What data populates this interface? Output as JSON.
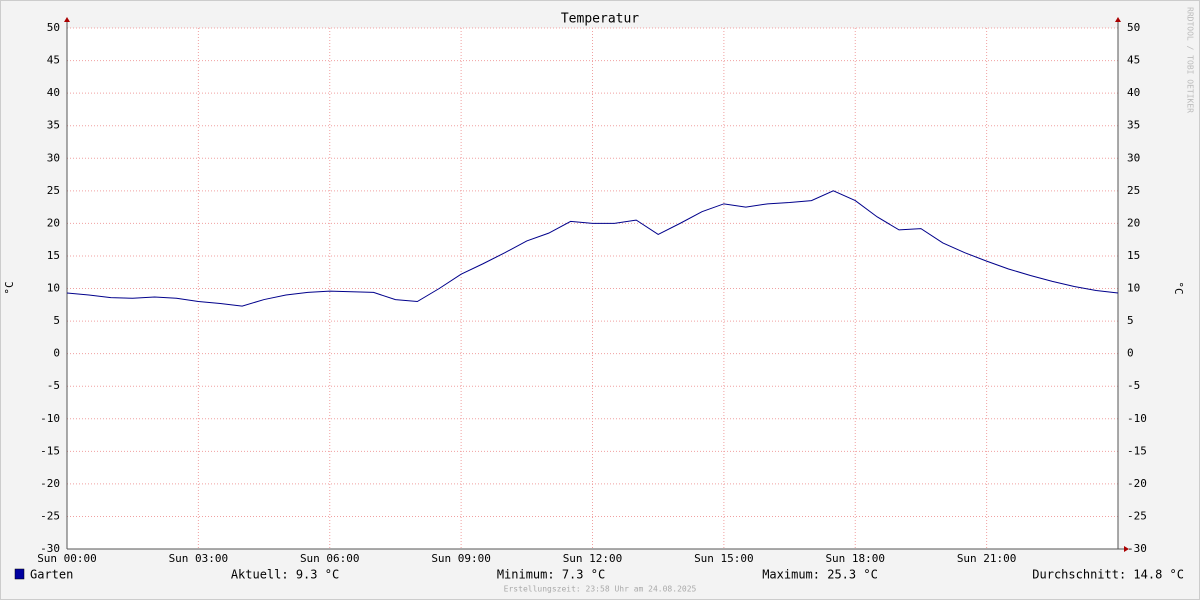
{
  "chart_data": {
    "type": "line",
    "title": "Temperatur",
    "y_label": "°C",
    "y2_label": "°C",
    "watermark": "RRDTOOL / TOBI OETIKER",
    "x": [
      0,
      0.5,
      1,
      1.5,
      2,
      2.5,
      3,
      3.5,
      4,
      4.5,
      5,
      5.5,
      6,
      6.5,
      7,
      7.5,
      8,
      8.5,
      9,
      9.5,
      10,
      10.5,
      11,
      11.5,
      12,
      12.5,
      13,
      13.5,
      14,
      14.5,
      15,
      15.5,
      16,
      16.5,
      17,
      17.5,
      18,
      18.5,
      19,
      19.5,
      20,
      20.5,
      21,
      21.5,
      22,
      22.5,
      23,
      23.5,
      24
    ],
    "series": [
      {
        "name": "Garten",
        "color": "#00008b",
        "values": [
          9.3,
          9.0,
          8.6,
          8.5,
          8.7,
          8.5,
          8.0,
          7.7,
          7.3,
          8.3,
          9.0,
          9.4,
          9.6,
          9.5,
          9.4,
          8.3,
          8.0,
          10.0,
          12.2,
          13.8,
          15.5,
          17.3,
          18.5,
          20.3,
          20.0,
          20.0,
          20.5,
          18.3,
          20.0,
          21.8,
          23.0,
          22.5,
          23.0,
          23.2,
          23.5,
          25.0,
          23.5,
          21.0,
          19.0,
          19.2,
          17.0,
          15.5,
          14.2,
          13.0,
          12.0,
          11.1,
          10.3,
          9.7,
          9.3
        ]
      }
    ],
    "xlim": [
      0,
      24
    ],
    "xticks": [
      {
        "value": 0,
        "label": "Sun 00:00"
      },
      {
        "value": 3,
        "label": "Sun 03:00"
      },
      {
        "value": 6,
        "label": "Sun 06:00"
      },
      {
        "value": 9,
        "label": "Sun 09:00"
      },
      {
        "value": 12,
        "label": "Sun 12:00"
      },
      {
        "value": 15,
        "label": "Sun 15:00"
      },
      {
        "value": 18,
        "label": "Sun 18:00"
      },
      {
        "value": 21,
        "label": "Sun 21:00"
      }
    ],
    "ylim": [
      -30,
      50
    ],
    "yticks": [
      -30,
      -25,
      -20,
      -15,
      -10,
      -5,
      0,
      5,
      10,
      15,
      20,
      25,
      30,
      35,
      40,
      45,
      50
    ],
    "grid": true,
    "legend": {
      "current": "Aktuell: 9.3 °C",
      "minimum": "Minimum: 7.3 °C",
      "maximum": "Maximum: 25.3 °C",
      "average": "Durchschnitt: 14.8 °C"
    },
    "footer": "Erstellungszeit: 23:58 Uhr am 24.08.2025"
  }
}
